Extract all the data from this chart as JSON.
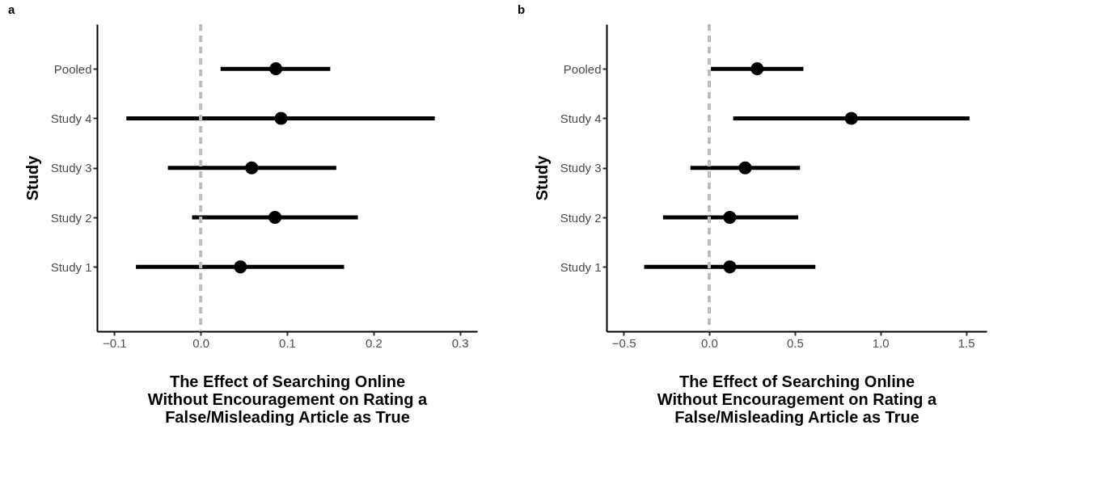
{
  "chart_data": [
    {
      "type": "scatter",
      "title": "a",
      "orientation": "horizontal",
      "categories": [
        "Pooled",
        "Study 4",
        "Study 3",
        "Study 2",
        "Study 1"
      ],
      "series": [
        {
          "color": "#000000",
          "values": [
            0.087,
            0.093,
            0.059,
            0.086,
            0.046
          ],
          "errors": [
            [
              0.023,
              0.15
            ],
            [
              -0.086,
              0.271
            ],
            [
              -0.038,
              0.157
            ],
            [
              -0.01,
              0.182
            ],
            [
              -0.075,
              0.166
            ]
          ]
        }
      ],
      "xlabel": "The Effect of Searching Online\nWithout Encouragement on Rating a\nFalse/Misleading Article as True",
      "ylabel": "Study",
      "xlim": [
        -0.12,
        0.32
      ],
      "xticks": [
        {
          "value": -0.1,
          "label": "−0.1"
        },
        {
          "value": 0,
          "label": "0.0"
        },
        {
          "value": 0.1,
          "label": "0.1"
        },
        {
          "value": 0.2,
          "label": "0.2"
        },
        {
          "value": 0.3,
          "label": "0.3"
        }
      ],
      "ref_lines": [
        {
          "axis": "x",
          "value": 0,
          "color": "#bebebe",
          "line_style": "dashed"
        }
      ],
      "marker": "circle",
      "grid": false,
      "legend": false
    },
    {
      "type": "scatter",
      "title": "b",
      "orientation": "horizontal",
      "categories": [
        "Pooled",
        "Study 4",
        "Study 3",
        "Study 2",
        "Study 1"
      ],
      "series": [
        {
          "color": "#000000",
          "values": [
            0.28,
            0.83,
            0.21,
            0.12,
            0.12
          ],
          "errors": [
            [
              0.01,
              0.55
            ],
            [
              0.14,
              1.52
            ],
            [
              -0.11,
              0.53
            ],
            [
              -0.27,
              0.52
            ],
            [
              -0.38,
              0.62
            ]
          ]
        }
      ],
      "xlabel": "The Effect of Searching Online\nWithout Encouragement on Rating a\nFalse/Misleading Article as True",
      "ylabel": "Study",
      "xlim": [
        -0.6,
        1.62
      ],
      "xticks": [
        {
          "value": -0.5,
          "label": "−0.5"
        },
        {
          "value": 0,
          "label": "0.0"
        },
        {
          "value": 0.5,
          "label": "0.5"
        },
        {
          "value": 1,
          "label": "1.0"
        },
        {
          "value": 1.5,
          "label": "1.5"
        }
      ],
      "ref_lines": [
        {
          "axis": "x",
          "value": 0,
          "color": "#bebebe",
          "line_style": "dashed"
        }
      ],
      "marker": "circle",
      "grid": false,
      "legend": false
    }
  ]
}
